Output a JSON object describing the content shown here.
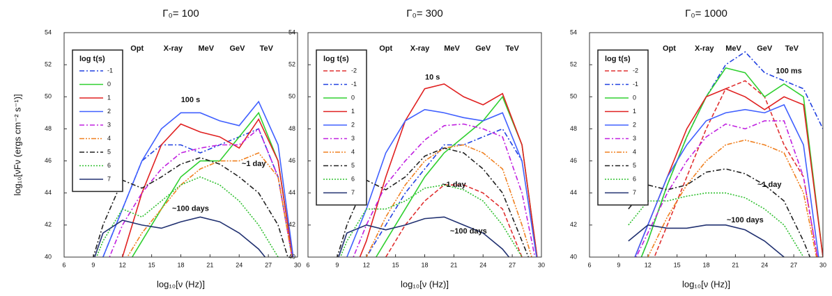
{
  "chart_data": [
    {
      "type": "line",
      "title": "Γ₀= 100",
      "xlabel": "log₁₀[ν (Hz)]",
      "ylabel": "log₁₀[νFν (ergs cm⁻² s⁻¹)]",
      "legend_title": "log t(s)",
      "legend": "upper left",
      "xlim": [
        6,
        30
      ],
      "xticks": [
        6,
        9,
        12,
        15,
        18,
        21,
        24,
        27,
        30
      ],
      "ylim": [
        40,
        54
      ],
      "yticks": [
        40,
        42,
        44,
        46,
        48,
        50,
        52,
        54
      ],
      "x": [
        8,
        10,
        12,
        14,
        16,
        18,
        20,
        22,
        24,
        26,
        28,
        30
      ],
      "series": [
        {
          "name": "-1",
          "color": "#2040e0",
          "dash": "dashdot",
          "values": [
            null,
            40,
            43,
            46,
            47,
            47,
            46.5,
            47,
            47.5,
            48,
            45,
            38
          ]
        },
        {
          "name": "0",
          "color": "#30d030",
          "dash": "solid",
          "values": [
            null,
            38,
            39,
            41,
            43,
            45,
            46,
            46,
            47.5,
            49,
            46,
            38
          ]
        },
        {
          "name": "1",
          "color": "#e02020",
          "dash": "solid",
          "values": [
            null,
            38,
            40,
            44,
            47,
            48.3,
            47.8,
            47.5,
            46.8,
            48.6,
            46,
            38
          ]
        },
        {
          "name": "2",
          "color": "#4060ff",
          "dash": "solid",
          "values": [
            null,
            40,
            43,
            46,
            48,
            49,
            49,
            48.5,
            48.2,
            49.7,
            47,
            38
          ]
        },
        {
          "name": "3",
          "color": "#c020e0",
          "dash": "dashdot",
          "values": [
            null,
            39,
            42,
            44,
            45.5,
            46.5,
            46.8,
            47,
            47,
            48,
            45,
            38
          ]
        },
        {
          "name": "4",
          "color": "#f08020",
          "dash": "dashdotdot",
          "values": [
            null,
            38,
            39.5,
            41.5,
            43,
            44.5,
            45.5,
            46,
            46,
            46.5,
            45,
            38
          ]
        },
        {
          "name": "5",
          "color": "#202020",
          "dash": "dashdot",
          "values": [
            38,
            42,
            44.8,
            44.3,
            45,
            45.8,
            46.2,
            45.8,
            45,
            44,
            42,
            38
          ]
        },
        {
          "name": "6",
          "color": "#30c030",
          "dash": "dotted",
          "values": [
            38,
            41,
            43,
            42.5,
            43.5,
            44.5,
            45,
            44.5,
            43.5,
            42,
            40,
            38
          ]
        },
        {
          "name": "7",
          "color": "#203070",
          "dash": "solid",
          "values": [
            38,
            41.5,
            42.3,
            42,
            41.8,
            42.2,
            42.5,
            42.2,
            41.5,
            40.5,
            39,
            38
          ]
        }
      ],
      "annotations": [
        {
          "text": "Opt",
          "x": 13.5,
          "y": 53
        },
        {
          "text": "X-ray",
          "x": 17.2,
          "y": 53
        },
        {
          "text": "MeV",
          "x": 20.6,
          "y": 53
        },
        {
          "text": "GeV",
          "x": 23.8,
          "y": 53
        },
        {
          "text": "TeV",
          "x": 26.8,
          "y": 53
        },
        {
          "text": "100 s",
          "x": 19,
          "y": 49.8
        },
        {
          "text": "~1 day",
          "x": 25.5,
          "y": 45.8
        },
        {
          "text": "~100 days",
          "x": 19,
          "y": 43
        }
      ]
    },
    {
      "type": "line",
      "title": "Γ₀= 300",
      "xlabel": "log₁₀[ν (Hz)]",
      "legend_title": "log t(s)",
      "legend": "upper left",
      "xlim": [
        6,
        30
      ],
      "xticks": [
        6,
        9,
        12,
        15,
        18,
        21,
        24,
        27,
        30
      ],
      "ylim": [
        40,
        54
      ],
      "yticks": [
        40,
        42,
        44,
        46,
        48,
        50,
        52,
        54
      ],
      "x": [
        8,
        10,
        12,
        14,
        16,
        18,
        20,
        22,
        24,
        26,
        28,
        30
      ],
      "series": [
        {
          "name": "-2",
          "color": "#e03030",
          "dash": "dashed",
          "values": [
            null,
            null,
            38,
            40,
            42,
            43.5,
            44.5,
            44.5,
            44,
            43,
            40,
            null
          ]
        },
        {
          "name": "-1",
          "color": "#2040e0",
          "dash": "dashdot",
          "values": [
            null,
            38,
            40,
            42,
            44,
            45.5,
            47,
            47,
            47.5,
            48,
            46,
            null
          ]
        },
        {
          "name": "0",
          "color": "#30d030",
          "dash": "solid",
          "values": [
            null,
            38,
            39,
            41,
            43,
            45,
            46.5,
            47.5,
            48.5,
            50,
            47,
            38
          ]
        },
        {
          "name": "1",
          "color": "#e02020",
          "dash": "solid",
          "values": [
            null,
            38,
            41,
            45,
            48.5,
            50.5,
            50.8,
            50,
            49.5,
            50.2,
            47,
            38
          ]
        },
        {
          "name": "2",
          "color": "#4060ff",
          "dash": "solid",
          "values": [
            null,
            40,
            43,
            46.5,
            48.5,
            49.2,
            49,
            48.7,
            48.5,
            49,
            46,
            38
          ]
        },
        {
          "name": "3",
          "color": "#c020e0",
          "dash": "dashdot",
          "values": [
            null,
            39,
            42,
            44.5,
            46,
            47.3,
            48.2,
            48.3,
            48,
            47.5,
            44,
            38
          ]
        },
        {
          "name": "4",
          "color": "#f08020",
          "dash": "dashdotdot",
          "values": [
            null,
            38,
            40,
            42.5,
            44.5,
            46,
            46.8,
            47,
            46.5,
            45.5,
            42,
            38
          ]
        },
        {
          "name": "5",
          "color": "#202020",
          "dash": "dashdot",
          "values": [
            38,
            42,
            44.8,
            44.2,
            45,
            46.3,
            46.8,
            46.5,
            45.5,
            44,
            41,
            38
          ]
        },
        {
          "name": "6",
          "color": "#30c030",
          "dash": "dotted",
          "values": [
            38,
            41,
            43,
            43,
            43.5,
            44.3,
            44.5,
            44.2,
            43.5,
            42,
            40,
            38
          ]
        },
        {
          "name": "7",
          "color": "#203070",
          "dash": "solid",
          "values": [
            38,
            41.5,
            42,
            41.7,
            42,
            42.4,
            42.5,
            42,
            41.5,
            40.5,
            39,
            38
          ]
        }
      ],
      "annotations": [
        {
          "text": "Opt",
          "x": 14,
          "y": 53
        },
        {
          "text": "X-ray",
          "x": 17.5,
          "y": 53
        },
        {
          "text": "MeV",
          "x": 20.8,
          "y": 53
        },
        {
          "text": "GeV",
          "x": 24,
          "y": 53
        },
        {
          "text": "TeV",
          "x": 27,
          "y": 53
        },
        {
          "text": "10 s",
          "x": 18.8,
          "y": 51.2
        },
        {
          "text": "~1 day",
          "x": 21,
          "y": 44.5
        },
        {
          "text": "~100 days",
          "x": 22.5,
          "y": 41.6
        }
      ]
    },
    {
      "type": "line",
      "title": "Γ₀= 1000",
      "xlabel": "log₁₀[ν (Hz)]",
      "legend_title": "log t(s)",
      "legend": "upper left",
      "xlim": [
        6,
        30
      ],
      "xticks": [
        6,
        9,
        12,
        15,
        18,
        21,
        24,
        27,
        30
      ],
      "ylim": [
        40,
        54
      ],
      "yticks": [
        40,
        42,
        44,
        46,
        48,
        50,
        52,
        54
      ],
      "x": [
        8,
        10,
        12,
        14,
        16,
        18,
        20,
        22,
        24,
        26,
        28,
        30
      ],
      "series": [
        {
          "name": "-2",
          "color": "#e03030",
          "dash": "dashed",
          "values": [
            null,
            null,
            39,
            42,
            45,
            48,
            50.5,
            51,
            50,
            47,
            45,
            38
          ]
        },
        {
          "name": "-1",
          "color": "#2040e0",
          "dash": "dashdot",
          "values": [
            null,
            38,
            41,
            44.5,
            47.5,
            50,
            52,
            52.8,
            51.5,
            51,
            50.5,
            48
          ]
        },
        {
          "name": "0",
          "color": "#30d030",
          "dash": "solid",
          "values": [
            null,
            38,
            41,
            44.5,
            47.5,
            50,
            51.8,
            51.5,
            50,
            50.8,
            50,
            40
          ]
        },
        {
          "name": "1",
          "color": "#e02020",
          "dash": "solid",
          "values": [
            null,
            39,
            42,
            45,
            48,
            50,
            50.5,
            50,
            49.2,
            50,
            49.5,
            40
          ]
        },
        {
          "name": "2",
          "color": "#4060ff",
          "dash": "solid",
          "values": [
            null,
            39,
            42,
            45,
            47,
            48.5,
            49,
            49.2,
            49,
            49.5,
            47,
            38
          ]
        },
        {
          "name": "3",
          "color": "#c020e0",
          "dash": "dashdot",
          "values": [
            null,
            39,
            41.5,
            44,
            46,
            47.5,
            48.3,
            48,
            48.5,
            48.5,
            45,
            38
          ]
        },
        {
          "name": "4",
          "color": "#f08020",
          "dash": "dashdotdot",
          "values": [
            null,
            38,
            40,
            42.5,
            44.5,
            46,
            47,
            47.3,
            47,
            46.5,
            44,
            38
          ]
        },
        {
          "name": "5",
          "color": "#202020",
          "dash": "dashdot",
          "values": [
            null,
            43,
            44.5,
            44.2,
            44.5,
            45.3,
            45.5,
            45.2,
            44.5,
            43.5,
            41,
            38
          ]
        },
        {
          "name": "6",
          "color": "#30c030",
          "dash": "dotted",
          "values": [
            null,
            42,
            43.5,
            43.5,
            43.8,
            44,
            44,
            43.7,
            43,
            42,
            40,
            38
          ]
        },
        {
          "name": "7",
          "color": "#203070",
          "dash": "solid",
          "values": [
            null,
            41,
            42,
            41.8,
            41.8,
            42,
            42,
            41.7,
            41,
            40,
            39,
            38
          ]
        }
      ],
      "annotations": [
        {
          "text": "Opt",
          "x": 14.2,
          "y": 53
        },
        {
          "text": "X-ray",
          "x": 17.8,
          "y": 53
        },
        {
          "text": "MeV",
          "x": 20.8,
          "y": 53
        },
        {
          "text": "GeV",
          "x": 24,
          "y": 53
        },
        {
          "text": "TeV",
          "x": 26.8,
          "y": 53
        },
        {
          "text": "100 ms",
          "x": 26.5,
          "y": 51.6
        },
        {
          "text": "~1 day",
          "x": 24.5,
          "y": 44.5
        },
        {
          "text": "~100 days",
          "x": 22,
          "y": 42.3
        }
      ]
    }
  ]
}
